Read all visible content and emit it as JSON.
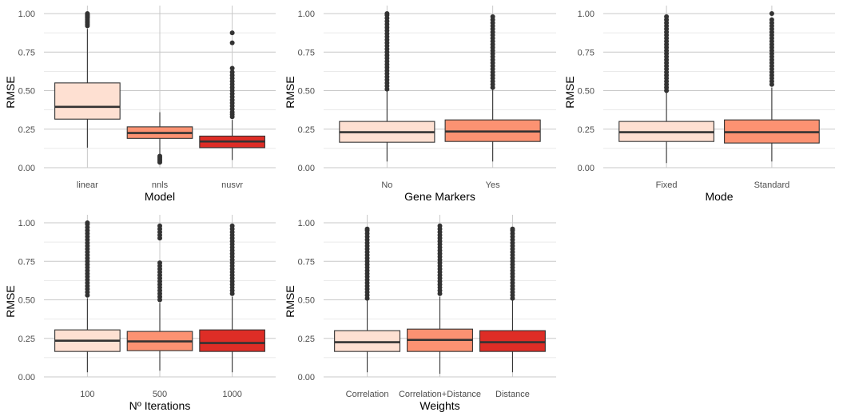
{
  "chart_data": [
    {
      "type": "boxplot",
      "xlabel": "Model",
      "ylabel": "RMSE",
      "ylim": [
        0,
        1
      ],
      "yticks": [
        "0.00",
        "0.25",
        "0.50",
        "0.75",
        "1.00"
      ],
      "grid": "on",
      "categories": [
        "linear",
        "nnls",
        "nusvr"
      ],
      "boxes": [
        {
          "label": "linear",
          "min": 0.13,
          "q1": 0.315,
          "median": 0.395,
          "q3": 0.55,
          "max": 0.9,
          "fill": "#fee0d2",
          "outliers": [
            0.92,
            0.93,
            0.94,
            0.95,
            0.96,
            0.97,
            0.975,
            0.98,
            0.985,
            0.99,
            0.995,
            1.0
          ]
        },
        {
          "label": "nnls",
          "min": 0.09,
          "q1": 0.19,
          "median": 0.225,
          "q3": 0.265,
          "max": 0.36,
          "fill": "#fc9272",
          "outliers": [
            0.035,
            0.045,
            0.055,
            0.065,
            0.075
          ]
        },
        {
          "label": "nusvr",
          "min": 0.05,
          "q1": 0.13,
          "median": 0.17,
          "q3": 0.205,
          "max": 0.31,
          "fill": "#de2d26",
          "outliers": [
            0.33,
            0.345,
            0.36,
            0.38,
            0.4,
            0.42,
            0.44,
            0.46,
            0.48,
            0.5,
            0.52,
            0.54,
            0.56,
            0.58,
            0.6,
            0.62,
            0.645,
            0.81,
            0.875
          ]
        }
      ]
    },
    {
      "type": "boxplot",
      "xlabel": "Gene Markers",
      "ylabel": "RMSE",
      "ylim": [
        0,
        1
      ],
      "yticks": [
        "0.00",
        "0.25",
        "0.50",
        "0.75",
        "1.00"
      ],
      "grid": "on",
      "categories": [
        "No",
        "Yes"
      ],
      "boxes": [
        {
          "label": "No",
          "min": 0.04,
          "q1": 0.165,
          "median": 0.23,
          "q3": 0.3,
          "max": 0.5,
          "fill": "#fee0d2",
          "outliers": [
            0.51,
            0.53,
            0.55,
            0.57,
            0.59,
            0.61,
            0.63,
            0.65,
            0.67,
            0.69,
            0.71,
            0.73,
            0.75,
            0.77,
            0.79,
            0.81,
            0.83,
            0.85,
            0.87,
            0.89,
            0.91,
            0.93,
            0.95,
            0.97,
            0.99,
            1.0
          ]
        },
        {
          "label": "Yes",
          "min": 0.04,
          "q1": 0.17,
          "median": 0.235,
          "q3": 0.31,
          "max": 0.51,
          "fill": "#fc9272",
          "outliers": [
            0.52,
            0.54,
            0.56,
            0.58,
            0.6,
            0.62,
            0.64,
            0.66,
            0.68,
            0.7,
            0.72,
            0.74,
            0.76,
            0.78,
            0.8,
            0.82,
            0.84,
            0.86,
            0.88,
            0.9,
            0.92,
            0.94,
            0.96,
            0.98
          ]
        }
      ]
    },
    {
      "type": "boxplot",
      "xlabel": "Mode",
      "ylabel": "RMSE",
      "ylim": [
        0,
        1
      ],
      "yticks": [
        "0.00",
        "0.25",
        "0.50",
        "0.75",
        "1.00"
      ],
      "grid": "on",
      "categories": [
        "Fixed",
        "Standard"
      ],
      "boxes": [
        {
          "label": "Fixed",
          "min": 0.03,
          "q1": 0.17,
          "median": 0.23,
          "q3": 0.3,
          "max": 0.49,
          "fill": "#fee0d2",
          "outliers": [
            0.5,
            0.52,
            0.54,
            0.56,
            0.58,
            0.6,
            0.62,
            0.64,
            0.66,
            0.68,
            0.7,
            0.72,
            0.74,
            0.76,
            0.78,
            0.8,
            0.82,
            0.84,
            0.86,
            0.88,
            0.9,
            0.92,
            0.94,
            0.96,
            0.98
          ]
        },
        {
          "label": "Standard",
          "min": 0.04,
          "q1": 0.16,
          "median": 0.23,
          "q3": 0.31,
          "max": 0.52,
          "fill": "#fc9272",
          "outliers": [
            0.54,
            0.56,
            0.58,
            0.6,
            0.62,
            0.64,
            0.66,
            0.68,
            0.7,
            0.72,
            0.74,
            0.76,
            0.78,
            0.8,
            0.82,
            0.84,
            0.86,
            0.88,
            0.9,
            0.92,
            0.94,
            0.96,
            1.0
          ]
        }
      ]
    },
    {
      "type": "boxplot",
      "xlabel": "Nº Iterations",
      "ylabel": "RMSE",
      "ylim": [
        0,
        1
      ],
      "yticks": [
        "0.00",
        "0.25",
        "0.50",
        "0.75",
        "1.00"
      ],
      "grid": "on",
      "categories": [
        "100",
        "500",
        "1000"
      ],
      "boxes": [
        {
          "label": "100",
          "min": 0.03,
          "q1": 0.165,
          "median": 0.235,
          "q3": 0.305,
          "max": 0.51,
          "fill": "#fee0d2",
          "outliers": [
            0.53,
            0.55,
            0.57,
            0.59,
            0.61,
            0.63,
            0.65,
            0.67,
            0.69,
            0.71,
            0.73,
            0.75,
            0.77,
            0.79,
            0.81,
            0.83,
            0.85,
            0.87,
            0.89,
            0.91,
            0.93,
            0.95,
            0.97,
            0.99,
            1.0
          ]
        },
        {
          "label": "500",
          "min": 0.04,
          "q1": 0.17,
          "median": 0.23,
          "q3": 0.295,
          "max": 0.48,
          "fill": "#fc9272",
          "outliers": [
            0.5,
            0.52,
            0.54,
            0.56,
            0.58,
            0.6,
            0.62,
            0.64,
            0.66,
            0.68,
            0.7,
            0.72,
            0.74,
            0.9,
            0.92,
            0.94,
            0.96,
            0.98
          ]
        },
        {
          "label": "1000",
          "min": 0.03,
          "q1": 0.165,
          "median": 0.22,
          "q3": 0.305,
          "max": 0.52,
          "fill": "#de2d26",
          "outliers": [
            0.54,
            0.56,
            0.58,
            0.6,
            0.62,
            0.64,
            0.66,
            0.68,
            0.7,
            0.72,
            0.74,
            0.76,
            0.78,
            0.8,
            0.82,
            0.84,
            0.86,
            0.88,
            0.9,
            0.92,
            0.94,
            0.96,
            0.98
          ]
        }
      ]
    },
    {
      "type": "boxplot",
      "xlabel": "Weights",
      "ylabel": "RMSE",
      "ylim": [
        0,
        1
      ],
      "yticks": [
        "0.00",
        "0.25",
        "0.50",
        "0.75",
        "1.00"
      ],
      "grid": "on",
      "categories": [
        "Correlation",
        "Correlation+Distance",
        "Distance"
      ],
      "boxes": [
        {
          "label": "Correlation",
          "min": 0.03,
          "q1": 0.165,
          "median": 0.225,
          "q3": 0.3,
          "max": 0.5,
          "fill": "#fee0d2",
          "outliers": [
            0.51,
            0.53,
            0.55,
            0.57,
            0.59,
            0.61,
            0.63,
            0.65,
            0.67,
            0.69,
            0.71,
            0.73,
            0.75,
            0.77,
            0.79,
            0.81,
            0.83,
            0.85,
            0.87,
            0.89,
            0.91,
            0.93,
            0.95,
            0.96
          ]
        },
        {
          "label": "Correlation+Distance",
          "min": 0.02,
          "q1": 0.165,
          "median": 0.24,
          "q3": 0.31,
          "max": 0.52,
          "fill": "#fc9272",
          "outliers": [
            0.54,
            0.56,
            0.58,
            0.6,
            0.62,
            0.64,
            0.66,
            0.68,
            0.7,
            0.72,
            0.74,
            0.76,
            0.78,
            0.8,
            0.82,
            0.84,
            0.86,
            0.88,
            0.9,
            0.92,
            0.94,
            0.96,
            0.98
          ]
        },
        {
          "label": "Distance",
          "min": 0.03,
          "q1": 0.165,
          "median": 0.225,
          "q3": 0.3,
          "max": 0.5,
          "fill": "#de2d26",
          "outliers": [
            0.51,
            0.53,
            0.55,
            0.57,
            0.59,
            0.61,
            0.63,
            0.65,
            0.67,
            0.69,
            0.71,
            0.73,
            0.75,
            0.77,
            0.79,
            0.81,
            0.83,
            0.85,
            0.87,
            0.89,
            0.91,
            0.93,
            0.95,
            0.96
          ]
        }
      ]
    }
  ]
}
